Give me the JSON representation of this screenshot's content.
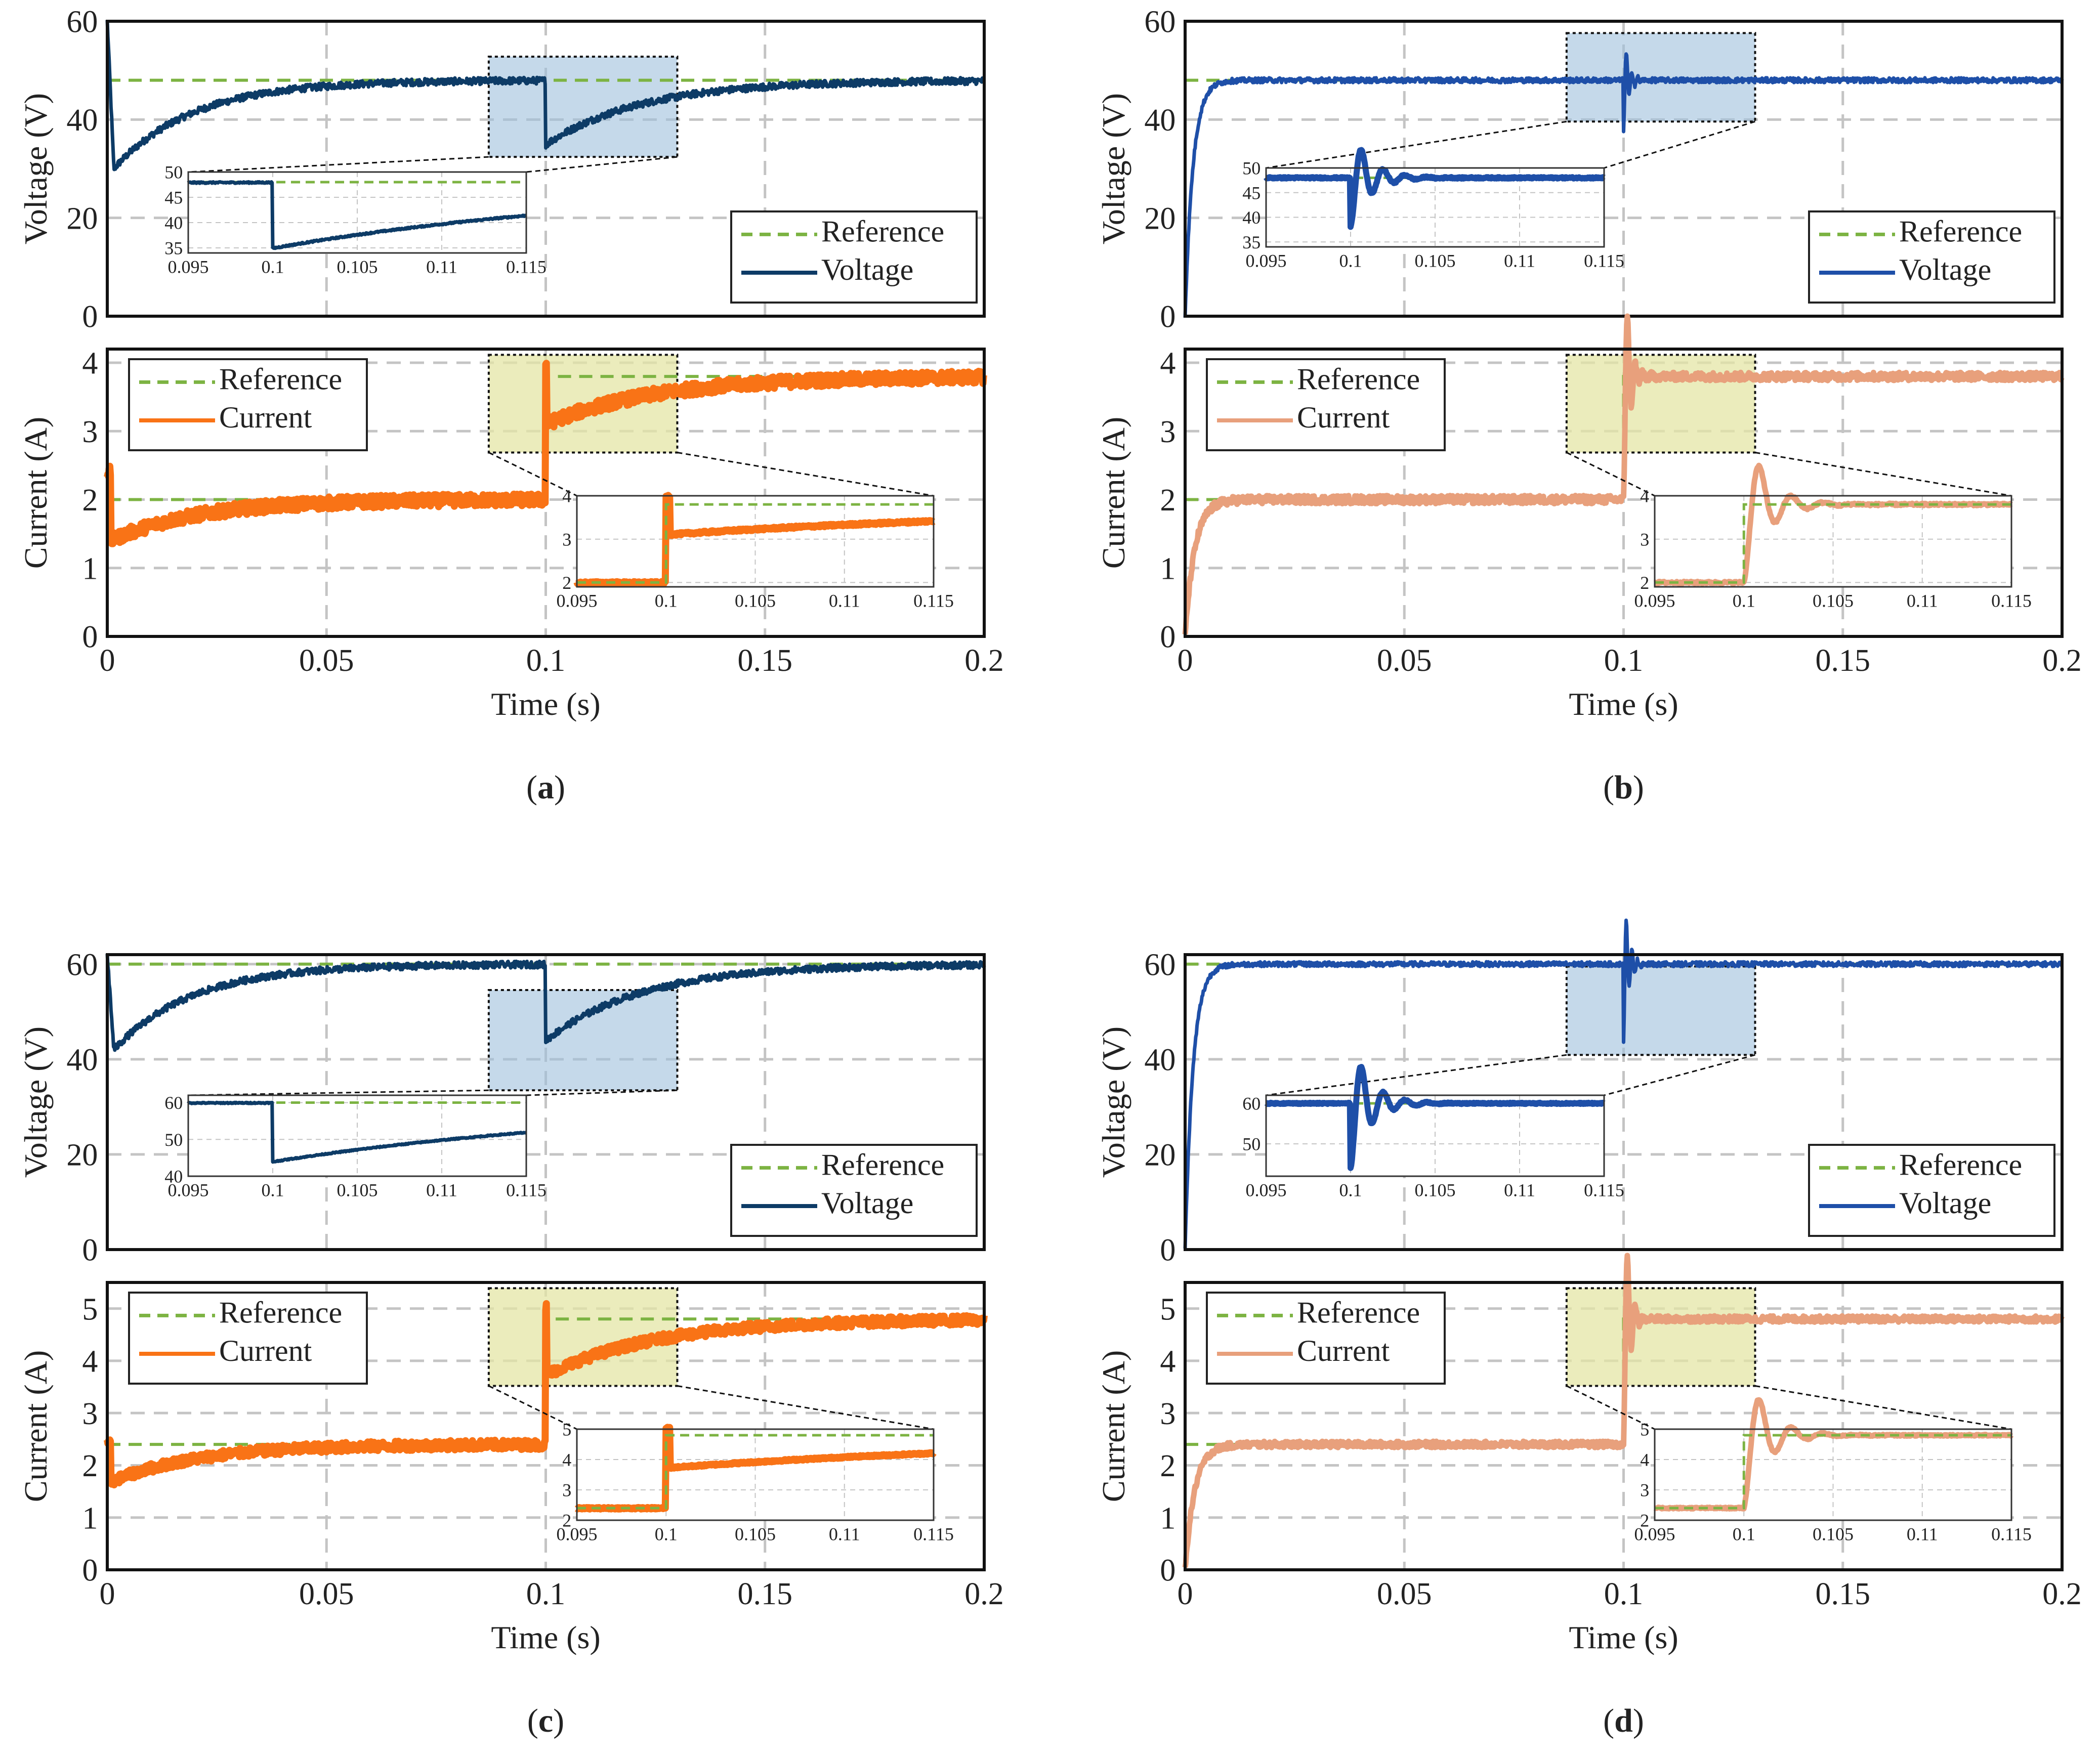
{
  "figure": {
    "panels": [
      {
        "id": "a",
        "caption": "(a)",
        "controller": "slow",
        "voltage_color": "#0d3b66",
        "current_color": "#f97316",
        "v_ref": [
          48,
          48
        ],
        "v_final": [
          48,
          48
        ],
        "v_start": 60,
        "v_initial_dip": 30,
        "v_dip_at_step": 35,
        "i_ref": [
          2,
          3.8
        ],
        "i_ylim": [
          0,
          4.2
        ],
        "i_yticks": [
          0,
          1,
          2,
          3,
          4
        ],
        "i_start_spike": 2.4,
        "v_inset_ylim": [
          34,
          50
        ],
        "v_inset_yticks": [
          35,
          40,
          45,
          50
        ],
        "i_inset_ylim": [
          1.9,
          4
        ],
        "i_inset_yticks": [
          2,
          3,
          4
        ]
      },
      {
        "id": "b",
        "caption": "(b)",
        "controller": "fast",
        "voltage_color": "#1e4fa8",
        "current_color": "#e8a07c",
        "v_ref": [
          48,
          48
        ],
        "v_final": [
          48,
          48
        ],
        "v_start": 0,
        "v_dip_at_step": 38,
        "i_ref": [
          2,
          3.8
        ],
        "i_ylim": [
          0,
          4.2
        ],
        "i_yticks": [
          0,
          1,
          2,
          3,
          4
        ],
        "v_inset_ylim": [
          34,
          50
        ],
        "v_inset_yticks": [
          35,
          40,
          45,
          50
        ],
        "i_inset_ylim": [
          1.9,
          4
        ],
        "i_inset_yticks": [
          2,
          3,
          4
        ]
      },
      {
        "id": "c",
        "caption": "(c)",
        "controller": "slow",
        "voltage_color": "#0d3b66",
        "current_color": "#f97316",
        "v_ref": [
          60,
          60
        ],
        "v_final": [
          60,
          60
        ],
        "v_start": 62,
        "v_initial_dip": 42,
        "v_dip_at_step": 44,
        "i_ref": [
          2.4,
          4.8
        ],
        "i_ylim": [
          0,
          5.5
        ],
        "i_yticks": [
          0,
          1,
          2,
          3,
          4,
          5
        ],
        "i_start_spike": 2.4,
        "v_inset_ylim": [
          40,
          62
        ],
        "v_inset_yticks": [
          40,
          50,
          60
        ],
        "i_inset_ylim": [
          2,
          5
        ],
        "i_inset_yticks": [
          2,
          3,
          4,
          5
        ]
      },
      {
        "id": "d",
        "caption": "(d)",
        "controller": "fast",
        "voltage_color": "#1e4fa8",
        "current_color": "#e8a07c",
        "v_ref": [
          60,
          60
        ],
        "v_final": [
          60,
          60
        ],
        "v_start": 0,
        "v_dip_at_step": 44,
        "i_ref": [
          2.4,
          4.8
        ],
        "i_ylim": [
          0,
          5.5
        ],
        "i_yticks": [
          0,
          1,
          2,
          3,
          4,
          5
        ],
        "v_inset_ylim": [
          42,
          62
        ],
        "v_inset_yticks": [
          50,
          60
        ],
        "i_inset_ylim": [
          2,
          5
        ],
        "i_inset_yticks": [
          2,
          3,
          4,
          5
        ]
      }
    ]
  },
  "chart_data": [
    {
      "type": "line",
      "panel": "a-voltage",
      "ylabel": "Voltage (V)",
      "xlim": [
        0,
        0.2
      ],
      "ylim": [
        0,
        60
      ],
      "yticks": [
        "0",
        "20",
        "40",
        "60"
      ],
      "grid": true,
      "legend_placement": "bottom-right",
      "series": [
        {
          "name": "Reference",
          "x": [
            0,
            0.2
          ],
          "values": [
            48,
            48
          ]
        },
        {
          "name": "Voltage",
          "x": [
            0,
            0.002,
            0.05,
            0.0999,
            0.1001,
            0.15,
            0.2
          ],
          "values": [
            60,
            31,
            47,
            48,
            35,
            47,
            48
          ]
        }
      ],
      "inset": {
        "xlim": [
          0.095,
          0.115
        ],
        "xticks": [
          "0.095",
          "0.1",
          "0.105",
          "0.11",
          "0.115"
        ],
        "yticks": [
          "35",
          "40",
          "45",
          "50"
        ]
      }
    },
    {
      "type": "line",
      "panel": "a-current",
      "ylabel": "Current (A)",
      "xlabel": "Time (s)",
      "xlim": [
        0,
        0.2
      ],
      "ylim": [
        0,
        4.2
      ],
      "xticks": [
        "0",
        "0.05",
        "0.1",
        "0.15",
        "0.2"
      ],
      "yticks": [
        "0",
        "1",
        "2",
        "3",
        "4"
      ],
      "grid": true,
      "legend_placement": "top-left",
      "series": [
        {
          "name": "Reference",
          "x": [
            0,
            0.1,
            0.1,
            0.2
          ],
          "values": [
            2,
            2,
            3.8,
            3.8
          ]
        },
        {
          "name": "Current",
          "x": [
            0,
            0.002,
            0.05,
            0.0999,
            0.1001,
            0.15,
            0.2
          ],
          "values": [
            2.4,
            1.4,
            1.9,
            1.95,
            3.1,
            3.7,
            3.8
          ]
        }
      ],
      "inset": {
        "xlim": [
          0.095,
          0.115
        ],
        "xticks": [
          "0.095",
          "0.1",
          "0.105",
          "0.11",
          "0.115"
        ],
        "yticks": [
          "2",
          "3",
          "4"
        ]
      }
    },
    {
      "type": "line",
      "panel": "b-voltage",
      "ylabel": "Voltage (V)",
      "xlim": [
        0,
        0.2
      ],
      "ylim": [
        0,
        60
      ],
      "yticks": [
        "0",
        "20",
        "40",
        "60"
      ],
      "grid": true,
      "legend_placement": "bottom-right",
      "series": [
        {
          "name": "Reference",
          "x": [
            0,
            0.2
          ],
          "values": [
            48,
            48
          ]
        },
        {
          "name": "Voltage",
          "x": [
            0,
            0.01,
            0.0999,
            0.1003,
            0.105,
            0.2
          ],
          "values": [
            0,
            48,
            48,
            38,
            48,
            48
          ]
        }
      ],
      "inset": {
        "xlim": [
          0.095,
          0.115
        ],
        "xticks": [
          "0.095",
          "0.1",
          "0.105",
          "0.11",
          "0.115"
        ],
        "yticks": [
          "35",
          "40",
          "45",
          "50"
        ]
      }
    },
    {
      "type": "line",
      "panel": "b-current",
      "ylabel": "Current (A)",
      "xlabel": "Time (s)",
      "xlim": [
        0,
        0.2
      ],
      "ylim": [
        0,
        4.2
      ],
      "xticks": [
        "0",
        "0.05",
        "0.1",
        "0.15",
        "0.2"
      ],
      "yticks": [
        "0",
        "1",
        "2",
        "3",
        "4"
      ],
      "grid": true,
      "legend_placement": "top-left",
      "series": [
        {
          "name": "Reference",
          "x": [
            0,
            0.1,
            0.1,
            0.2
          ],
          "values": [
            2,
            2,
            3.8,
            3.8
          ]
        },
        {
          "name": "Current",
          "x": [
            0,
            0.01,
            0.0999,
            0.1003,
            0.2
          ],
          "values": [
            0,
            1.9,
            1.9,
            3.8,
            3.8
          ]
        }
      ],
      "inset": {
        "xlim": [
          0.095,
          0.115
        ],
        "xticks": [
          "0.095",
          "0.1",
          "0.105",
          "0.11",
          "0.115"
        ],
        "yticks": [
          "2",
          "3",
          "4"
        ]
      }
    },
    {
      "type": "line",
      "panel": "c-voltage",
      "ylabel": "Voltage (V)",
      "xlim": [
        0,
        0.2
      ],
      "ylim": [
        0,
        62
      ],
      "yticks": [
        "0",
        "20",
        "40",
        "60"
      ],
      "grid": true,
      "legend_placement": "bottom-right",
      "series": [
        {
          "name": "Reference",
          "x": [
            0,
            0.2
          ],
          "values": [
            60,
            60
          ]
        },
        {
          "name": "Voltage",
          "x": [
            0,
            0.002,
            0.05,
            0.0999,
            0.1001,
            0.15,
            0.2
          ],
          "values": [
            62,
            43,
            59.5,
            60,
            44,
            59,
            60
          ]
        }
      ],
      "inset": {
        "xlim": [
          0.095,
          0.115
        ],
        "xticks": [
          "0.095",
          "0.1",
          "0.105",
          "0.11",
          "0.115"
        ],
        "yticks": [
          "40",
          "50",
          "60"
        ]
      }
    },
    {
      "type": "line",
      "panel": "c-current",
      "ylabel": "Current (A)",
      "xlabel": "Time (s)",
      "xlim": [
        0,
        0.2
      ],
      "ylim": [
        0,
        5.5
      ],
      "xticks": [
        "0",
        "0.05",
        "0.1",
        "0.15",
        "0.2"
      ],
      "yticks": [
        "0",
        "1",
        "2",
        "3",
        "4",
        "5"
      ],
      "grid": true,
      "legend_placement": "top-left",
      "series": [
        {
          "name": "Reference",
          "x": [
            0,
            0.1,
            0.1,
            0.2
          ],
          "values": [
            2.4,
            2.4,
            4.8,
            4.8
          ]
        },
        {
          "name": "Current",
          "x": [
            0,
            0.002,
            0.05,
            0.0999,
            0.1001,
            0.15,
            0.2
          ],
          "values": [
            2.4,
            1.7,
            2.35,
            2.4,
            3.8,
            4.6,
            4.8
          ]
        }
      ],
      "inset": {
        "xlim": [
          0.095,
          0.115
        ],
        "xticks": [
          "0.095",
          "0.1",
          "0.105",
          "0.11",
          "0.115"
        ],
        "yticks": [
          "2",
          "3",
          "4",
          "5"
        ]
      }
    },
    {
      "type": "line",
      "panel": "d-voltage",
      "ylabel": "Voltage (V)",
      "xlim": [
        0,
        0.2
      ],
      "ylim": [
        0,
        62
      ],
      "yticks": [
        "0",
        "20",
        "40",
        "60"
      ],
      "grid": true,
      "legend_placement": "bottom-right",
      "series": [
        {
          "name": "Reference",
          "x": [
            0,
            0.2
          ],
          "values": [
            60,
            60
          ]
        },
        {
          "name": "Voltage",
          "x": [
            0,
            0.01,
            0.0999,
            0.1003,
            0.105,
            0.2
          ],
          "values": [
            0,
            60,
            60,
            44,
            60,
            60
          ]
        }
      ],
      "inset": {
        "xlim": [
          0.095,
          0.115
        ],
        "xticks": [
          "0.095",
          "0.1",
          "0.105",
          "0.11",
          "0.115"
        ],
        "yticks": [
          "50",
          "60"
        ]
      }
    },
    {
      "type": "line",
      "panel": "d-current",
      "ylabel": "Current (A)",
      "xlabel": "Time (s)",
      "xlim": [
        0,
        0.2
      ],
      "ylim": [
        0,
        5.5
      ],
      "xticks": [
        "0",
        "0.05",
        "0.1",
        "0.15",
        "0.2"
      ],
      "yticks": [
        "0",
        "1",
        "2",
        "3",
        "4",
        "5"
      ],
      "grid": true,
      "legend_placement": "top-left",
      "series": [
        {
          "name": "Reference",
          "x": [
            0,
            0.1,
            0.1,
            0.2
          ],
          "values": [
            2.4,
            2.4,
            4.8,
            4.8
          ]
        },
        {
          "name": "Current",
          "x": [
            0,
            0.01,
            0.0999,
            0.1003,
            0.2
          ],
          "values": [
            0,
            2.4,
            2.4,
            4.8,
            4.8
          ]
        }
      ],
      "inset": {
        "xlim": [
          0.095,
          0.115
        ],
        "xticks": [
          "0.095",
          "0.1",
          "0.105",
          "0.11",
          "0.115"
        ],
        "yticks": [
          "2",
          "3",
          "4",
          "5"
        ]
      }
    }
  ],
  "labels": {
    "voltage_ylabel": "Voltage (V)",
    "current_ylabel": "Current (A)",
    "xlabel": "Time (s)",
    "legend_reference": "Reference",
    "legend_voltage": "Voltage",
    "legend_current": "Current",
    "main_xticks": [
      "0",
      "0.05",
      "0.1",
      "0.15",
      "0.2"
    ],
    "voltage_yticks": [
      "0",
      "20",
      "40",
      "60"
    ],
    "inset_xticks": [
      "0.095",
      "0.1",
      "0.105",
      "0.11",
      "0.115"
    ]
  },
  "colors": {
    "reference": "#7cb342",
    "grid": "#c4c4c4",
    "voltage_zoom_fill": "#9fbfdc",
    "current_zoom_fill": "#e4e6a6"
  }
}
